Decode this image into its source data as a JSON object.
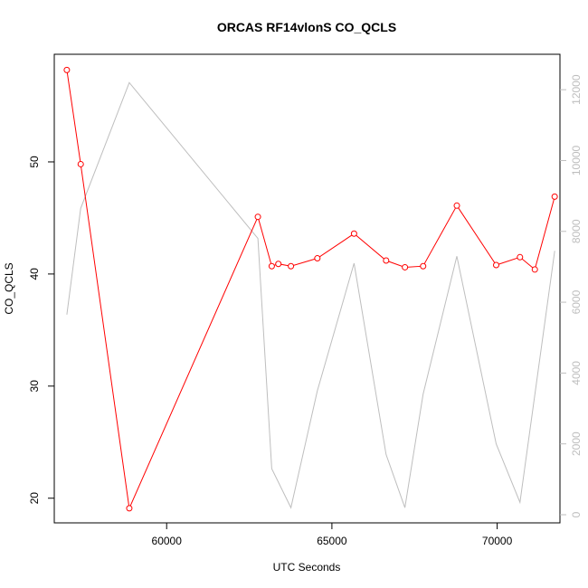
{
  "chart_data": {
    "type": "line",
    "title": "ORCAS RF14vlonS CO_QCLS",
    "xlabel": "UTC Seconds",
    "ylabel": "CO_QCLS",
    "xlim": [
      56600,
      71900
    ],
    "ylim": [
      17.8,
      59.6
    ],
    "x_ticks": [
      60000,
      65000,
      70000
    ],
    "x_tick_labels": [
      "60000",
      "65000",
      "70000"
    ],
    "y_ticks": [
      20,
      30,
      40,
      50
    ],
    "y_tick_labels": [
      "20",
      "30",
      "40",
      "50"
    ],
    "y2lim": [
      -230,
      13000
    ],
    "y2_ticks": [
      0,
      2000,
      4000,
      6000,
      8000,
      10000,
      12000
    ],
    "y2_tick_labels": [
      "0",
      "2000",
      "4000",
      "6000",
      "8000",
      "10000",
      "12000"
    ],
    "grid": false,
    "legend": "none",
    "series": [
      {
        "axis": "left",
        "color": "#ff0000",
        "marker": "open-circle",
        "x": [
          56980,
          57400,
          58870,
          62760,
          63180,
          63380,
          63760,
          64560,
          65670,
          66640,
          67210,
          67760,
          68780,
          69970,
          70690,
          71140,
          71740
        ],
        "y": [
          58.2,
          49.8,
          19.1,
          45.1,
          40.7,
          40.9,
          40.7,
          41.4,
          43.6,
          41.2,
          40.6,
          40.7,
          46.1,
          40.8,
          41.5,
          40.4,
          46.9
        ]
      },
      {
        "axis": "right",
        "color": "#bebebe",
        "marker": "none",
        "x": [
          56980,
          57400,
          58870,
          62760,
          63180,
          63760,
          64560,
          65670,
          66640,
          67210,
          67760,
          68780,
          69970,
          70690,
          71740
        ],
        "y": [
          5650,
          8650,
          12200,
          7800,
          1300,
          200,
          3500,
          7100,
          1700,
          200,
          3400,
          7300,
          2000,
          350,
          7450
        ]
      }
    ]
  }
}
